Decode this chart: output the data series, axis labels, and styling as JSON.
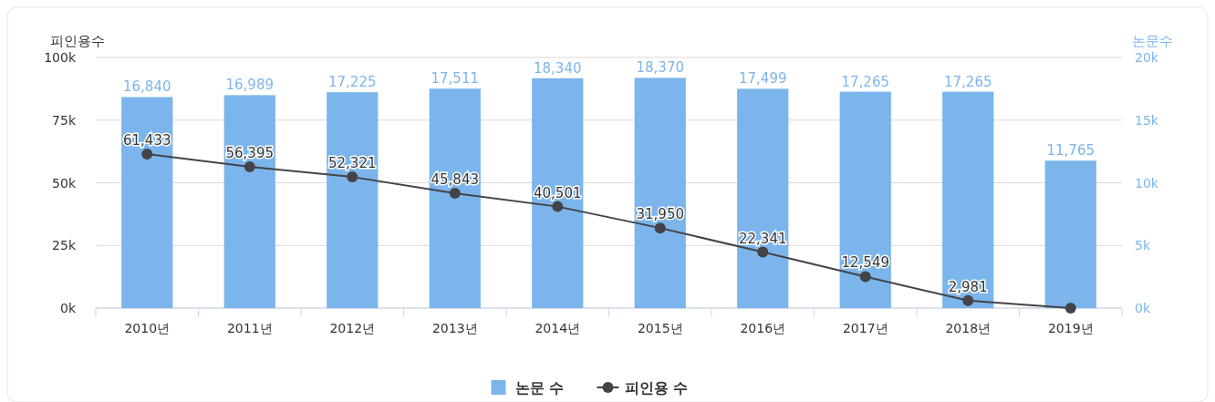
{
  "chart_data": {
    "type": "bar",
    "categories": [
      "2010년",
      "2011년",
      "2012년",
      "2013년",
      "2014년",
      "2015년",
      "2016년",
      "2017년",
      "2018년",
      "2019년"
    ],
    "ylabel": "피인용수",
    "y2label": "논문수",
    "ylim": [
      0,
      100000
    ],
    "yticks": [
      {
        "value": 0,
        "label": "0k"
      },
      {
        "value": 25000,
        "label": "25k"
      },
      {
        "value": 50000,
        "label": "50k"
      },
      {
        "value": 75000,
        "label": "75k"
      },
      {
        "value": 100000,
        "label": "100k"
      }
    ],
    "y2lim": [
      0,
      20000
    ],
    "y2ticks": [
      {
        "value": 0,
        "label": "0k"
      },
      {
        "value": 5000,
        "label": "5k"
      },
      {
        "value": 10000,
        "label": "10k"
      },
      {
        "value": 15000,
        "label": "15k"
      },
      {
        "value": 20000,
        "label": "20k"
      }
    ],
    "grid": "y",
    "legend": "bottom",
    "series": [
      {
        "name": "논문 수",
        "axis": "y2",
        "color": "#7cb5ec",
        "values": [
          16840,
          16989,
          17225,
          17511,
          18340,
          18370,
          17499,
          17265,
          17265,
          11765
        ],
        "value_labels": [
          "16,840",
          "16,989",
          "17,225",
          "17,511",
          "18,340",
          "18,370",
          "17,499",
          "17,265",
          "17,265",
          "11,765"
        ]
      },
      {
        "name": "피인용 수",
        "type": "line",
        "color": "#434348",
        "marker": "circle",
        "values": [
          61433,
          56395,
          52321,
          45843,
          40501,
          31950,
          22341,
          12549,
          2981,
          0
        ],
        "value_labels": [
          "61,433",
          "56,395",
          "52,321",
          "45,843",
          "40,501",
          "31,950",
          "22,341",
          "12,549",
          "2,981",
          null
        ]
      }
    ]
  }
}
